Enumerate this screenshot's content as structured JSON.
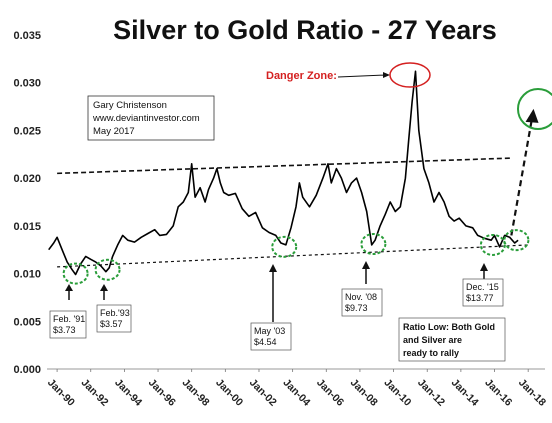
{
  "chart_data": {
    "type": "line",
    "title": "Silver to Gold Ratio - 27 Years",
    "xlabel": "",
    "ylabel": "",
    "ylim": [
      0,
      0.035
    ],
    "y_ticks": [
      "0.000",
      "0.005",
      "0.010",
      "0.015",
      "0.020",
      "0.025",
      "0.030",
      "0.035"
    ],
    "x_tick_labels": [
      "Jan-90",
      "Jan-92",
      "Jan-94",
      "Jan-96",
      "Jan-98",
      "Jan-00",
      "Jan-02",
      "Jan-04",
      "Jan-06",
      "Jan-08",
      "Jan-10",
      "Jan-12",
      "Jan-14",
      "Jan-16",
      "Jan-18"
    ],
    "x_range": [
      1989.4,
      2019.0
    ],
    "grid": false,
    "series": [
      {
        "name": "",
        "color": "#000000",
        "x": [
          1989.5,
          1989.8,
          1990.0,
          1990.3,
          1990.6,
          1990.9,
          1991.1,
          1991.4,
          1991.7,
          1992.0,
          1992.3,
          1992.6,
          1992.9,
          1993.1,
          1993.3,
          1993.6,
          1993.9,
          1994.2,
          1994.6,
          1995.0,
          1995.4,
          1995.8,
          1996.1,
          1996.5,
          1996.9,
          1997.2,
          1997.5,
          1997.8,
          1998.0,
          1998.2,
          1998.5,
          1998.8,
          1999.0,
          1999.3,
          1999.5,
          1999.7,
          1999.9,
          2000.2,
          2000.6,
          2001.0,
          2001.4,
          2001.8,
          2002.2,
          2002.6,
          2003.0,
          2003.3,
          2003.6,
          2003.9,
          2004.2,
          2004.4,
          2004.6,
          2005.0,
          2005.4,
          2005.8,
          2006.1,
          2006.3,
          2006.6,
          2006.9,
          2007.2,
          2007.5,
          2007.8,
          2008.1,
          2008.4,
          2008.7,
          2008.9,
          2009.2,
          2009.5,
          2009.8,
          2010.1,
          2010.4,
          2010.7,
          2010.9,
          2011.1,
          2011.3,
          2011.5,
          2011.8,
          2012.1,
          2012.4,
          2012.7,
          2013.0,
          2013.3,
          2013.6,
          2013.9,
          2014.3,
          2014.7,
          2015.0,
          2015.4,
          2015.8,
          2016.0,
          2016.3,
          2016.6,
          2016.9,
          2017.2,
          2017.4
        ],
        "y": [
          0.0125,
          0.0132,
          0.0138,
          0.0125,
          0.0112,
          0.0104,
          0.0099,
          0.011,
          0.0118,
          0.0115,
          0.0112,
          0.0108,
          0.0102,
          0.0106,
          0.0118,
          0.013,
          0.014,
          0.0135,
          0.0133,
          0.0138,
          0.0142,
          0.0146,
          0.014,
          0.0141,
          0.015,
          0.017,
          0.0175,
          0.0185,
          0.0215,
          0.018,
          0.019,
          0.0175,
          0.0188,
          0.02,
          0.021,
          0.0195,
          0.0185,
          0.0182,
          0.0184,
          0.0168,
          0.016,
          0.0164,
          0.0148,
          0.0143,
          0.014,
          0.0132,
          0.013,
          0.0148,
          0.017,
          0.0195,
          0.018,
          0.017,
          0.0182,
          0.02,
          0.0215,
          0.0195,
          0.021,
          0.02,
          0.0185,
          0.0195,
          0.02,
          0.0185,
          0.0165,
          0.013,
          0.0135,
          0.015,
          0.0162,
          0.0175,
          0.0165,
          0.017,
          0.02,
          0.024,
          0.028,
          0.0312,
          0.025,
          0.021,
          0.0195,
          0.0175,
          0.0185,
          0.0175,
          0.016,
          0.0155,
          0.0158,
          0.015,
          0.0148,
          0.014,
          0.0137,
          0.0135,
          0.014,
          0.0128,
          0.014,
          0.0138,
          0.0132,
          0.0135
        ]
      }
    ],
    "trend_lines": [
      {
        "style": "dashed",
        "x": [
          1990.0,
          2017.0
        ],
        "y": [
          0.0205,
          0.0221
        ]
      },
      {
        "style": "dashed",
        "x": [
          1990.0,
          2018.0
        ],
        "y": [
          0.0107,
          0.013
        ]
      },
      {
        "style": "dashed",
        "x": [
          2017.0,
          2018.2
        ],
        "y": [
          0.014,
          0.026
        ]
      }
    ],
    "annotations": {
      "credit": [
        "Gary Christenson",
        "www.deviantinvestor.com",
        "May 2017"
      ],
      "danger_zone": "Danger Zone:",
      "callouts": [
        {
          "line1": "Feb. '91",
          "line2": "$3.73"
        },
        {
          "line1": "Feb.'93",
          "line2": "$3.57"
        },
        {
          "line1": "May '03",
          "line2": "$4.54"
        },
        {
          "line1": "Nov. '08",
          "line2": "$9.73"
        },
        {
          "line1": "Dec. '15",
          "line2": "$13.77"
        }
      ],
      "ratio_low": [
        "Ratio Low: Both Gold",
        "and Silver  are",
        "ready to rally"
      ]
    }
  }
}
